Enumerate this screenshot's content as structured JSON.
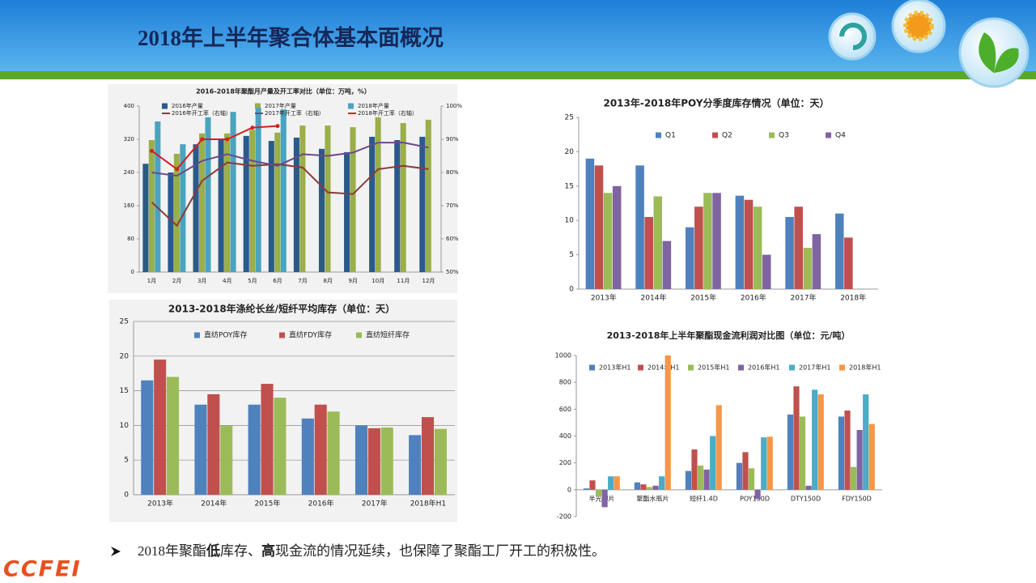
{
  "slide_title": "2018年上半年聚合体基本面概况",
  "note": [
    "2018年聚酯",
    "低",
    "库存、",
    "高",
    "现金流的情况延续，也保障了聚酯工厂开工的积极性。"
  ],
  "logo": "CCFEI",
  "chart_data": [
    {
      "type": "bar",
      "title": "2016-2018年聚酯月产量及开工率对比（单位：万吨，%）",
      "categories": [
        "1月",
        "2月",
        "3月",
        "4月",
        "5月",
        "6月",
        "7月",
        "8月",
        "9月",
        "10月",
        "11月",
        "12月"
      ],
      "ylim": [
        0,
        400
      ],
      "yticks": [
        0,
        80,
        160,
        240,
        320,
        400
      ],
      "y2lim": [
        50,
        100
      ],
      "y2ticks": [
        {
          "value": 50,
          "label": "50%"
        },
        {
          "value": 60,
          "label": "60%"
        },
        {
          "value": 70,
          "label": "70%"
        },
        {
          "value": 80,
          "label": "80%"
        },
        {
          "value": 90,
          "label": "90%"
        },
        {
          "value": 100,
          "label": "100%"
        }
      ],
      "grid": false,
      "series": [
        {
          "name": "2016年产量",
          "color": "#2a5a8c",
          "values": [
            261,
            240,
            308,
            320,
            328,
            316,
            324,
            297,
            289,
            326,
            318,
            326
          ]
        },
        {
          "name": "2017年产量",
          "color": "#9aae4a",
          "values": [
            318,
            285,
            334,
            334,
            343,
            336,
            353,
            353,
            349,
            373,
            359,
            367
          ]
        },
        {
          "name": "2018年产量",
          "color": "#4aa3bf",
          "values": [
            363,
            308,
            373,
            386,
            396,
            392,
            null,
            null,
            null,
            null,
            null,
            null
          ]
        },
        {
          "name": "2016年开工率（右轴）",
          "color": "#8b3a3a",
          "type": "line",
          "axis": "y2",
          "values": [
            71,
            64,
            77.5,
            83,
            82,
            82.5,
            81.5,
            74,
            73.5,
            81,
            82,
            81
          ]
        },
        {
          "name": "2017年开工率（右轴）",
          "color": "#6a4a8a",
          "type": "line",
          "axis": "y2",
          "values": [
            80,
            79,
            83.5,
            85.5,
            83.5,
            82,
            85.5,
            85,
            86,
            89,
            89,
            87.5
          ]
        },
        {
          "name": "2018年开工率（右轴）",
          "color": "#d42020",
          "type": "line",
          "axis": "y2",
          "marker": "circle",
          "values": [
            86.5,
            81,
            90,
            90,
            93.5,
            94,
            null,
            null,
            null,
            null,
            null,
            null
          ]
        }
      ]
    },
    {
      "type": "bar",
      "title": "2013年-2018年POY分季度库存情况（单位：天）",
      "categories": [
        "2013年",
        "2014年",
        "2015年",
        "2016年",
        "2017年",
        "2018年"
      ],
      "ylim": [
        0,
        25
      ],
      "yticks": [
        0,
        5,
        10,
        15,
        20,
        25
      ],
      "grid": false,
      "series": [
        {
          "name": "Q1",
          "color": "#4f81bd",
          "values": [
            19,
            18,
            9,
            13.6,
            10.5,
            11
          ]
        },
        {
          "name": "Q2",
          "color": "#c0504d",
          "values": [
            18,
            10.5,
            12,
            13,
            12,
            7.5
          ]
        },
        {
          "name": "Q3",
          "color": "#9bbb59",
          "values": [
            14,
            13.5,
            14,
            12,
            6,
            null
          ]
        },
        {
          "name": "Q4",
          "color": "#8064a2",
          "values": [
            15,
            7,
            14,
            5,
            8,
            null
          ]
        }
      ]
    },
    {
      "type": "bar",
      "title": "2013-2018年涤纶长丝/短纤平均库存（单位：天）",
      "categories": [
        "2013年",
        "2014年",
        "2015年",
        "2016年",
        "2017年",
        "2018年H1"
      ],
      "ylim": [
        0,
        25
      ],
      "yticks": [
        0,
        5,
        10,
        15,
        20,
        25
      ],
      "grid": true,
      "series": [
        {
          "name": "直纺POY库存",
          "color": "#4f81bd",
          "values": [
            16.5,
            13,
            13,
            11,
            10,
            8.6
          ]
        },
        {
          "name": "直纺FDY库存",
          "color": "#c0504d",
          "values": [
            19.5,
            14.5,
            16,
            13,
            9.6,
            11.2
          ]
        },
        {
          "name": "直纺短纤库存",
          "color": "#9bbb59",
          "values": [
            17,
            10,
            14,
            12,
            9.7,
            9.5
          ]
        }
      ]
    },
    {
      "type": "bar",
      "title": "2013-2018年上半年聚酯现金流利润对比图（单位：元/吨）",
      "categories": [
        "半光切片",
        "聚酯水瓶片",
        "短纤1.4D",
        "POY150D",
        "DTY150D",
        "FDY150D"
      ],
      "ylim": [
        -200,
        1000
      ],
      "yticks": [
        -200,
        0,
        200,
        400,
        600,
        800,
        1000
      ],
      "grid": false,
      "series": [
        {
          "name": "2013年H1",
          "color": "#4f81bd",
          "values": [
            10,
            55,
            140,
            200,
            560,
            545
          ]
        },
        {
          "name": "2014年H1",
          "color": "#c0504d",
          "values": [
            70,
            40,
            300,
            280,
            770,
            590
          ]
        },
        {
          "name": "2015年H1",
          "color": "#9bbb59",
          "values": [
            -50,
            20,
            180,
            160,
            545,
            170
          ]
        },
        {
          "name": "2016年H1",
          "color": "#8064a2",
          "values": [
            -130,
            30,
            150,
            -70,
            30,
            445
          ]
        },
        {
          "name": "2017年H1",
          "color": "#4bacc6",
          "values": [
            100,
            100,
            400,
            390,
            745,
            710
          ]
        },
        {
          "name": "2018年H1",
          "color": "#f79646",
          "values": [
            100,
            1000,
            630,
            395,
            710,
            490
          ]
        }
      ]
    }
  ]
}
